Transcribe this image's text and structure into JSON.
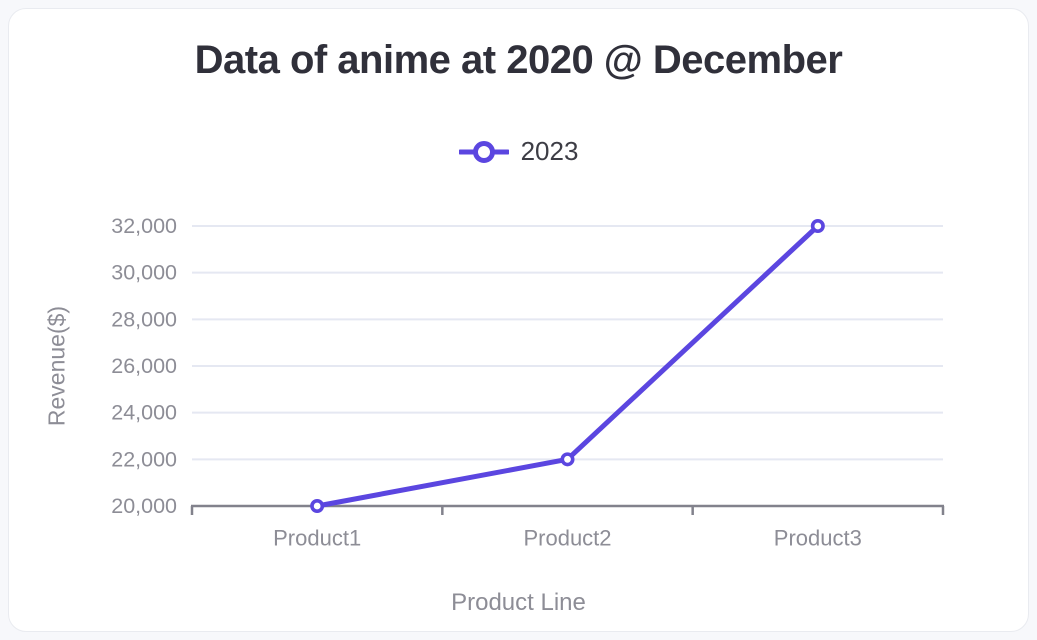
{
  "chart_data": {
    "type": "line",
    "title": "Data of anime at 2020 @ December",
    "xlabel": "Product Line",
    "ylabel": "Revenue($)",
    "categories": [
      "Product1",
      "Product2",
      "Product3"
    ],
    "series": [
      {
        "name": "2023",
        "values": [
          20000,
          22000,
          32000
        ]
      }
    ],
    "ylim": [
      20000,
      32000
    ],
    "ytick_step": 2000,
    "ytick_labels": [
      "20,000",
      "22,000",
      "24,000",
      "26,000",
      "28,000",
      "30,000",
      "32,000"
    ],
    "legend_position": "top-center",
    "grid": "horizontal-only",
    "marker": "open-circle",
    "colors": {
      "line": "#5b46e0",
      "marker_fill": "#ffffff",
      "grid": "#e5e8f2",
      "axis": "#82828c",
      "tick_text": "#8d8d96",
      "title_text": "#30303a",
      "legend_text": "#3d3d45",
      "card_bg": "#ffffff",
      "card_border": "#e9ebf0",
      "page_bg": "#f7f8fb"
    }
  }
}
